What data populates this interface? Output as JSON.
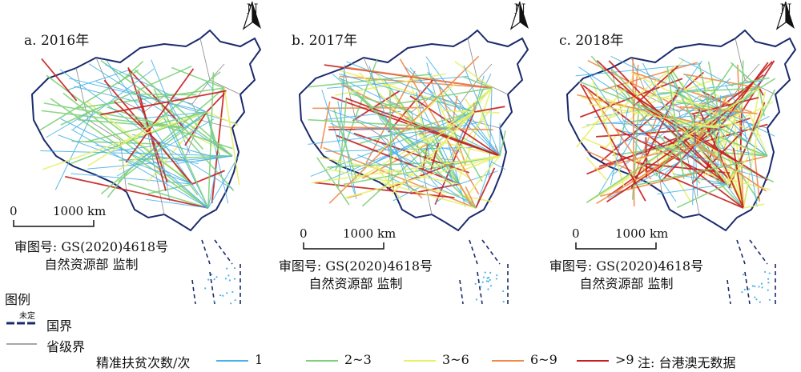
{
  "panels": [
    {
      "title": "a. 2016年"
    },
    {
      "title": "b. 2017年"
    },
    {
      "title": "c. 2018年"
    }
  ],
  "north_label": "N",
  "scale": {
    "zero": "0",
    "distance": "1000 km"
  },
  "approval": {
    "line1": "审图号: GS(2020)4618号",
    "line2": "自然资源部 监制"
  },
  "map_legend": {
    "title": "图例",
    "undetermined": "未定",
    "border_national": "国界",
    "border_provincial": "省级界"
  },
  "frequency_legend": {
    "title": "精准扶贫次数/次",
    "items": [
      {
        "label": "1",
        "color": "#4ab3e6"
      },
      {
        "label": "2~3",
        "color": "#7fd07a"
      },
      {
        "label": "3~6",
        "color": "#e8f06a"
      },
      {
        "label": "6~9",
        "color": "#f08a4a"
      },
      {
        "label": ">9",
        "color": "#c81e1e"
      }
    ],
    "note": "注: 台港澳无数据"
  },
  "colors": {
    "national_border": "#1a2a6c",
    "provincial_border": "#8a8a8a"
  }
}
